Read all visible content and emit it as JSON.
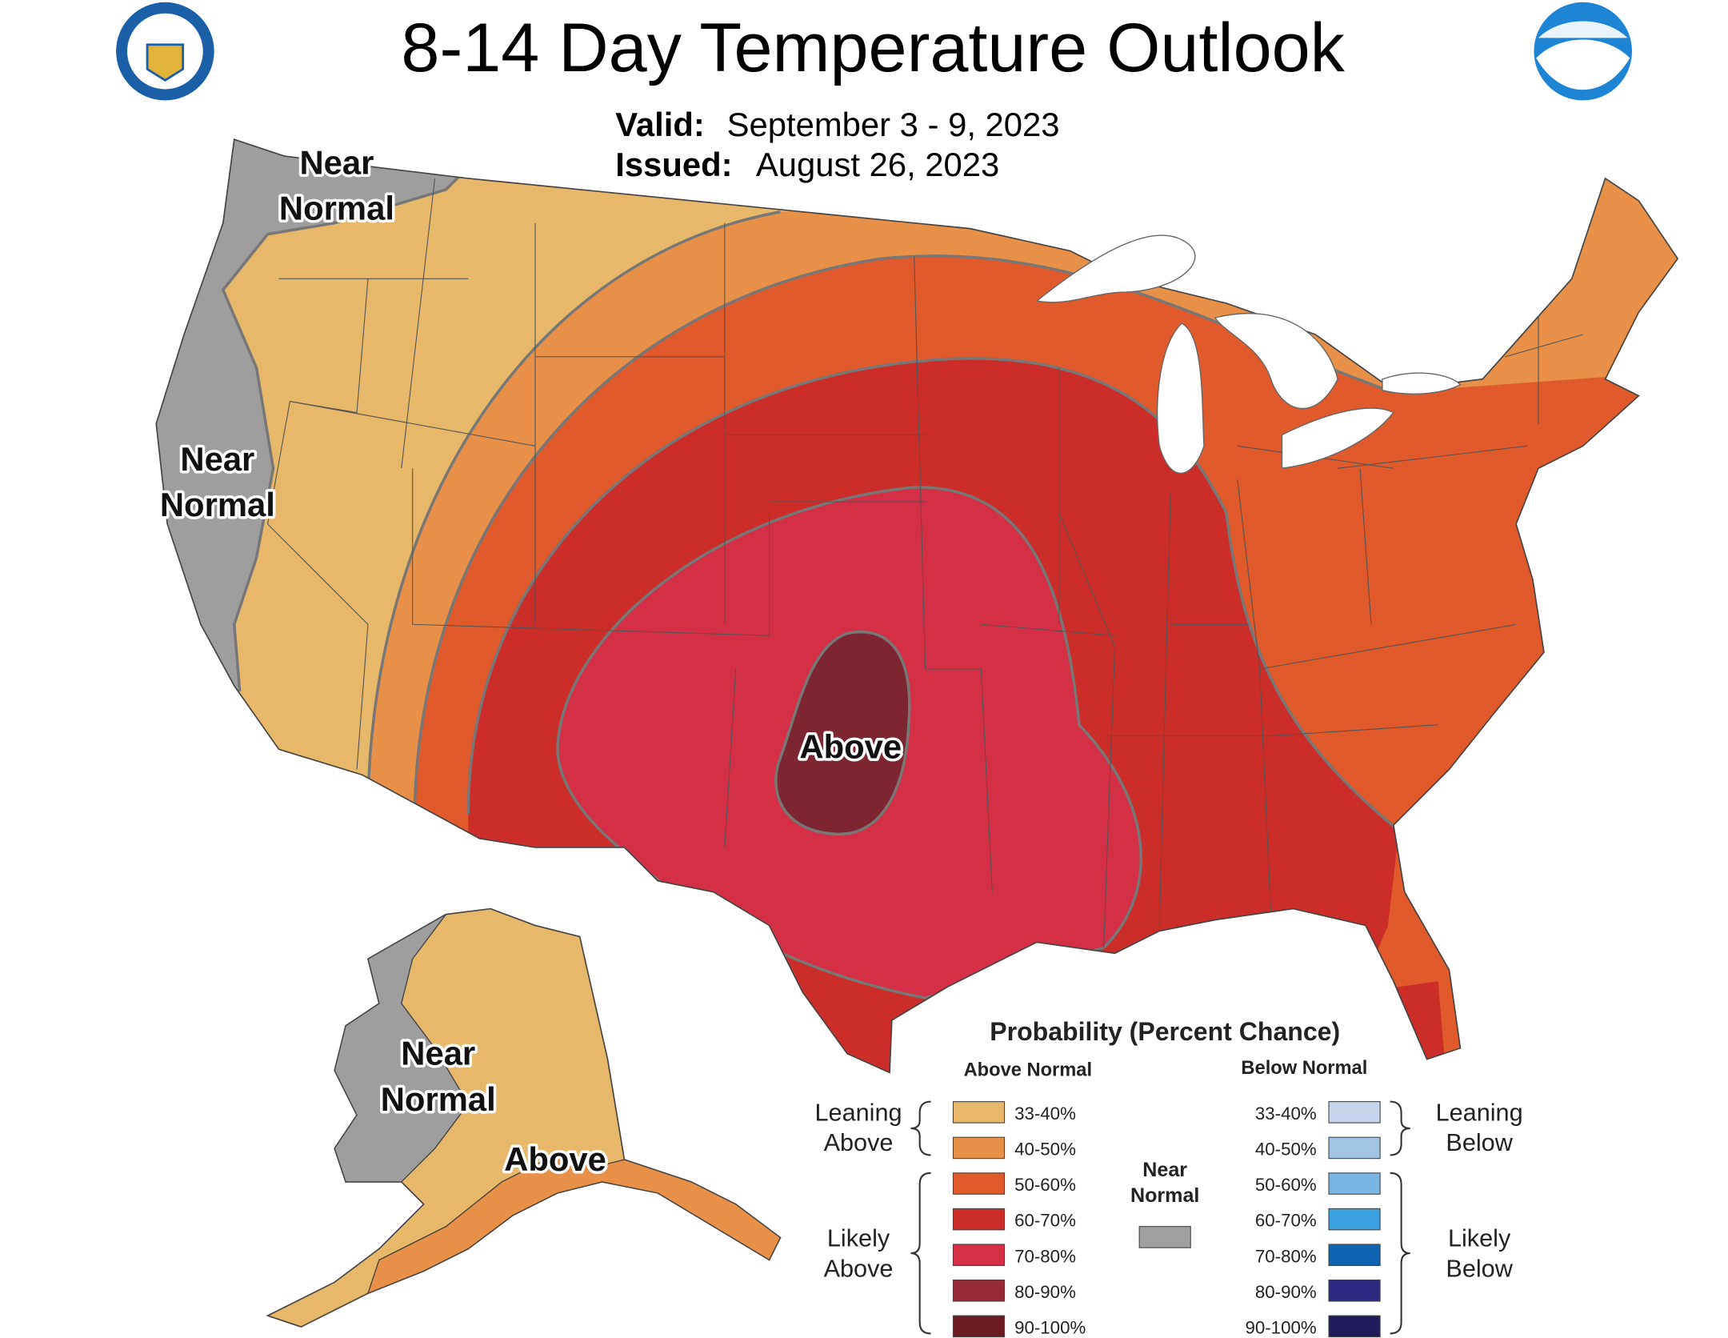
{
  "header": {
    "title": "8-14 Day Temperature Outlook",
    "valid_label": "Valid:",
    "valid": "September 3 - 9, 2023",
    "issued_label": "Issued:",
    "issued": "August 26, 2023"
  },
  "map_labels": [
    [
      "Near",
      "Normal"
    ],
    [
      "Near",
      "Normal"
    ],
    [
      "Above"
    ],
    [
      "Near",
      "Normal"
    ],
    [
      "Above"
    ]
  ],
  "legend": {
    "title": "Probability (Percent Chance)",
    "above_heading": "Above Normal",
    "below_heading": "Below Normal",
    "above": [
      {
        "label": "33-40%",
        "color": "#e8b86a"
      },
      {
        "label": "40-50%",
        "color": "#e89048"
      },
      {
        "label": "50-60%",
        "color": "#e05a2c"
      },
      {
        "label": "60-70%",
        "color": "#cc2d28"
      },
      {
        "label": "70-80%",
        "color": "#d42f45"
      },
      {
        "label": "80-90%",
        "color": "#962a35"
      },
      {
        "label": "90-100%",
        "color": "#6a1c20"
      }
    ],
    "below": [
      {
        "label": "33-40%",
        "color": "#c6d4ec"
      },
      {
        "label": "40-50%",
        "color": "#a2c4e4"
      },
      {
        "label": "50-60%",
        "color": "#7ab6e4"
      },
      {
        "label": "60-70%",
        "color": "#3aa0e0"
      },
      {
        "label": "70-80%",
        "color": "#0e64b0"
      },
      {
        "label": "80-90%",
        "color": "#2c2a80"
      },
      {
        "label": "90-100%",
        "color": "#1e1a5c"
      }
    ],
    "near": {
      "lines": [
        "Near",
        "Normal"
      ],
      "color": "#a0a0a0"
    },
    "leaning_above": [
      "Leaning",
      "Above"
    ],
    "likely_above": [
      "Likely",
      "Above"
    ],
    "leaning_below": [
      "Leaning",
      "Below"
    ],
    "likely_below": [
      "Likely",
      "Below"
    ]
  }
}
